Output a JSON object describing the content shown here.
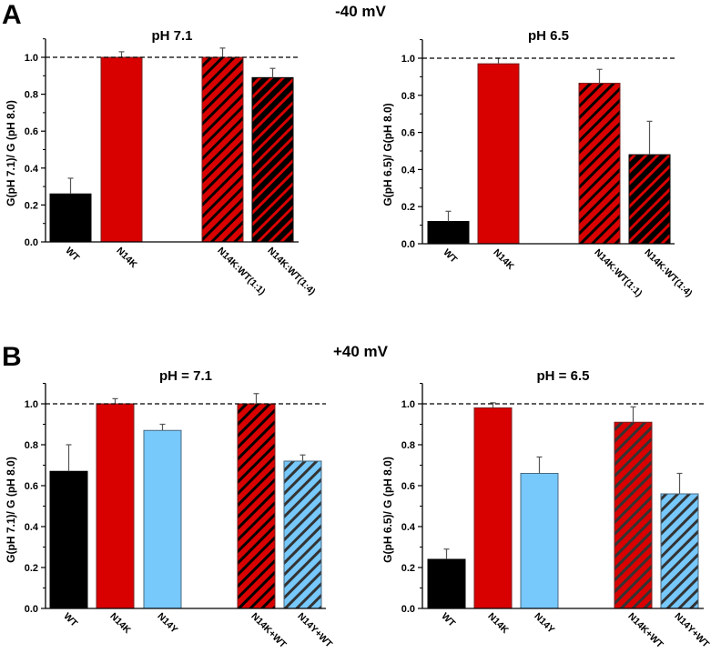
{
  "figure": {
    "panel_labels": [
      "A",
      "B"
    ],
    "headings": [
      "-40 mV",
      "+40 mV"
    ]
  },
  "colors": {
    "wt": "#000000",
    "n14k": "#d90000",
    "n14y": "#77c8fb",
    "hatch_dark": "#000000",
    "hatch_gray": "#333333",
    "reference_line": "#000000"
  },
  "chart_data": [
    {
      "id": "A-left",
      "panel": "A",
      "condition": "-40 mV",
      "type": "bar",
      "title": "pH 7.1",
      "xlabel": "",
      "ylabel": "G(pH 7.1)/ G (pH 8.0)",
      "ylim": [
        0,
        1.1
      ],
      "yticks": [
        0.0,
        0.2,
        0.4,
        0.6,
        0.8,
        1.0
      ],
      "ytick_labels": [
        "0.0",
        "0.2",
        "0.4",
        "0.6",
        "0.8",
        "1.0"
      ],
      "reference_line": 1.0,
      "grid": false,
      "categories": [
        "WT",
        "N14K",
        "N14K:WT(1:1)",
        "N14K:WT(1:4)"
      ],
      "values": [
        0.26,
        1.0,
        1.0,
        0.89
      ],
      "errors": [
        0.085,
        0.03,
        0.05,
        0.05
      ],
      "fills": [
        "wt",
        "n14k",
        "n14k",
        "wt"
      ],
      "hatch": [
        null,
        null,
        "hatch_dark",
        "n14k"
      ],
      "gap_after_index": 1
    },
    {
      "id": "A-right",
      "panel": "A",
      "condition": "-40 mV",
      "type": "bar",
      "title": "pH 6.5",
      "xlabel": "",
      "ylabel": "G(pH 6.5)/ G(pH 8.0)",
      "ylim": [
        0,
        1.1
      ],
      "yticks": [
        0.0,
        0.2,
        0.4,
        0.6,
        0.8,
        1.0
      ],
      "ytick_labels": [
        "0.0",
        "0.2",
        "0.4",
        "0.6",
        "0.8",
        "1.0"
      ],
      "reference_line": 1.0,
      "grid": false,
      "categories": [
        "WT",
        "N14K",
        "N14K:WT(1:1)",
        "N14K:WT(1:4)"
      ],
      "values": [
        0.12,
        0.97,
        0.865,
        0.48
      ],
      "errors": [
        0.055,
        0.03,
        0.075,
        0.18
      ],
      "fills": [
        "wt",
        "n14k",
        "n14k",
        "wt"
      ],
      "hatch": [
        null,
        null,
        "hatch_dark",
        "n14k"
      ],
      "gap_after_index": 1
    },
    {
      "id": "B-left",
      "panel": "B",
      "condition": "+40 mV",
      "type": "bar",
      "title": "pH = 7.1",
      "xlabel": "",
      "ylabel": "G(pH 7.1)/ G (pH 8.0)",
      "ylim": [
        0,
        1.1
      ],
      "yticks": [
        0.0,
        0.2,
        0.4,
        0.6,
        0.8,
        1.0
      ],
      "ytick_labels": [
        "0.0",
        "0.2",
        "0.4",
        "0.6",
        "0.8",
        "1.0"
      ],
      "reference_line": 1.0,
      "grid": false,
      "categories": [
        "WT",
        "N14K",
        "N14Y",
        "N14K+WT",
        "N14Y+WT"
      ],
      "values": [
        0.67,
        1.0,
        0.87,
        1.0,
        0.72
      ],
      "errors": [
        0.13,
        0.025,
        0.03,
        0.05,
        0.03
      ],
      "fills": [
        "wt",
        "n14k",
        "n14y",
        "n14k",
        "n14y"
      ],
      "hatch": [
        null,
        null,
        null,
        "hatch_dark",
        "hatch_gray"
      ],
      "gap_after_index": 2
    },
    {
      "id": "B-right",
      "panel": "B",
      "condition": "+40 mV",
      "type": "bar",
      "title": "pH = 6.5",
      "xlabel": "",
      "ylabel": "G(pH 6.5)/ G (pH 8.0)",
      "ylim": [
        0,
        1.1
      ],
      "yticks": [
        0.0,
        0.2,
        0.4,
        0.6,
        0.8,
        1.0
      ],
      "ytick_labels": [
        "0.0",
        "0.2",
        "0.4",
        "0.6",
        "0.8",
        "1.0"
      ],
      "reference_line": 1.0,
      "grid": false,
      "categories": [
        "WT",
        "N14K",
        "N14Y",
        "N14K+WT",
        "N14Y+WT"
      ],
      "values": [
        0.24,
        0.98,
        0.66,
        0.91,
        0.56
      ],
      "errors": [
        0.05,
        0.025,
        0.08,
        0.075,
        0.1
      ],
      "fills": [
        "wt",
        "n14k",
        "n14y",
        "n14k",
        "n14y"
      ],
      "hatch": [
        null,
        null,
        null,
        "hatch_gray",
        "hatch_gray"
      ],
      "gap_after_index": 2
    }
  ]
}
